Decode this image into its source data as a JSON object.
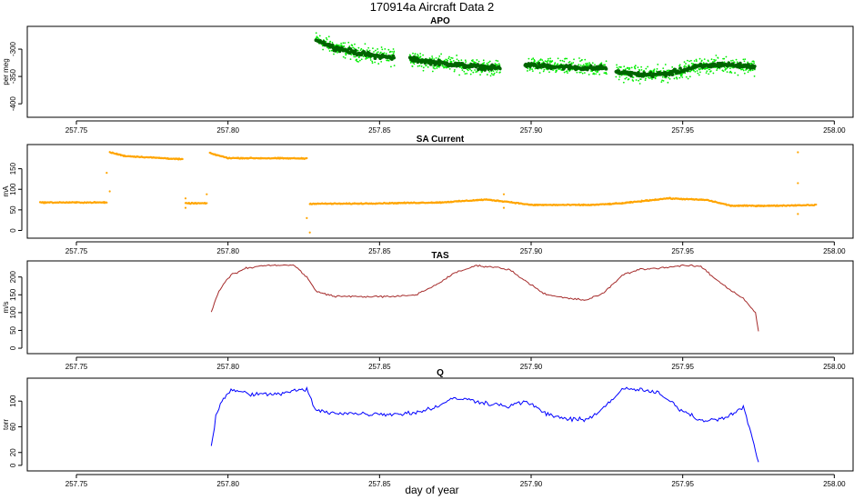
{
  "page": {
    "title": "170914a   Aircraft Data 2",
    "xlabel": "day of year"
  },
  "chart_data": [
    {
      "type": "scatter",
      "title": "APO",
      "ylabel": "per meg",
      "xlim": [
        257.735,
        258.005
      ],
      "ylim": [
        -418,
        -265
      ],
      "xticks": [
        257.75,
        257.8,
        257.85,
        257.9,
        257.95,
        258.0
      ],
      "xtick_labels": [
        "257.75",
        "257.80",
        "257.85",
        "257.90",
        "257.95",
        "258.00"
      ],
      "yticks": [
        -300,
        -350,
        -400
      ],
      "ytick_labels": [
        "-300",
        "-350",
        "-400"
      ],
      "colors": {
        "raw": "#00ee00",
        "smoothed": "#006400"
      },
      "segments": [
        {
          "x": [
            257.829,
            257.835,
            257.842,
            257.848,
            257.855
          ],
          "y": [
            -282,
            -297,
            -306,
            -312,
            -316
          ]
        },
        {
          "x": [
            257.86,
            257.868,
            257.876,
            257.884,
            257.89
          ],
          "y": [
            -318,
            -324,
            -329,
            -333,
            -335
          ]
        },
        {
          "x": [
            257.898,
            257.905,
            257.912,
            257.919,
            257.925
          ],
          "y": [
            -329,
            -331,
            -333,
            -335,
            -334
          ]
        },
        {
          "x": [
            257.928,
            257.937,
            257.945,
            257.955,
            257.963,
            257.974
          ],
          "y": [
            -342,
            -347,
            -345,
            -332,
            -328,
            -332
          ]
        }
      ]
    },
    {
      "type": "scatter",
      "title": "SA Current",
      "ylabel": "mA",
      "xlim": [
        257.735,
        258.005
      ],
      "ylim": [
        -10,
        200
      ],
      "xticks": [
        257.75,
        257.8,
        257.85,
        257.9,
        257.95,
        258.0
      ],
      "xtick_labels": [
        "257.75",
        "257.80",
        "257.85",
        "257.90",
        "257.95",
        "258.00"
      ],
      "yticks": [
        0,
        50,
        100,
        150
      ],
      "ytick_labels": [
        "0",
        "50",
        "100",
        "150"
      ],
      "colors": {
        "points": "#ffa500"
      },
      "x": [
        257.738,
        257.76,
        257.761,
        257.766,
        257.785,
        257.786,
        257.789,
        257.793,
        257.794,
        257.8,
        257.826,
        257.827,
        257.84,
        257.87,
        257.885,
        257.892,
        257.9,
        257.92,
        257.93,
        257.945,
        257.958,
        257.966,
        257.98,
        257.994
      ],
      "y": [
        68,
        68,
        190,
        181,
        173,
        66,
        66,
        66,
        188,
        176,
        175,
        65,
        65,
        68,
        75,
        70,
        62,
        62,
        66,
        78,
        74,
        60,
        60,
        62
      ]
    },
    {
      "type": "line",
      "title": "TAS",
      "ylabel": "m/s",
      "xlim": [
        257.735,
        258.005
      ],
      "ylim": [
        -5,
        235
      ],
      "xticks": [
        257.75,
        257.8,
        257.85,
        257.9,
        257.95,
        258.0
      ],
      "xtick_labels": [
        "257.75",
        "257.80",
        "257.85",
        "257.90",
        "257.95",
        "258.00"
      ],
      "yticks": [
        0,
        50,
        100,
        150,
        200
      ],
      "ytick_labels": [
        "0",
        "50",
        "100",
        "150",
        "200"
      ],
      "colors": {
        "line": "#a52a2a"
      },
      "x": [
        257.7945,
        257.796,
        257.798,
        257.801,
        257.806,
        257.812,
        257.818,
        257.822,
        257.826,
        257.829,
        257.835,
        257.845,
        257.855,
        257.862,
        257.868,
        257.875,
        257.882,
        257.888,
        257.893,
        257.898,
        257.905,
        257.912,
        257.918,
        257.924,
        257.93,
        257.936,
        257.942,
        257.95,
        257.956,
        257.96,
        257.965,
        257.97,
        257.974,
        257.975
      ],
      "y": [
        100,
        140,
        175,
        205,
        225,
        232,
        234,
        232,
        200,
        160,
        146,
        145,
        145,
        150,
        175,
        212,
        232,
        228,
        220,
        190,
        150,
        140,
        135,
        155,
        205,
        222,
        225,
        232,
        230,
        200,
        168,
        140,
        100,
        48
      ]
    },
    {
      "type": "line",
      "title": "Q",
      "ylabel": "torr",
      "xlim": [
        257.735,
        258.005
      ],
      "ylim": [
        -3,
        130
      ],
      "xticks": [
        257.75,
        257.8,
        257.85,
        257.9,
        257.95,
        258.0
      ],
      "xtick_labels": [
        "257.75",
        "257.80",
        "257.85",
        "257.90",
        "257.95",
        "258.00"
      ],
      "yticks": [
        0,
        20,
        60,
        100
      ],
      "ytick_labels": [
        "0",
        "20",
        "60",
        "100"
      ],
      "colors": {
        "line": "#0000ff"
      },
      "x": [
        257.7945,
        257.796,
        257.798,
        257.801,
        257.806,
        257.812,
        257.818,
        257.822,
        257.826,
        257.829,
        257.835,
        257.845,
        257.855,
        257.862,
        257.868,
        257.875,
        257.882,
        257.888,
        257.893,
        257.898,
        257.905,
        257.912,
        257.918,
        257.924,
        257.93,
        257.936,
        257.942,
        257.95,
        257.956,
        257.962,
        257.966,
        257.97,
        257.974,
        257.975
      ],
      "y": [
        28,
        75,
        100,
        118,
        112,
        110,
        112,
        116,
        118,
        85,
        82,
        80,
        80,
        82,
        90,
        105,
        100,
        95,
        92,
        100,
        80,
        72,
        70,
        90,
        118,
        118,
        112,
        85,
        70,
        72,
        80,
        90,
        25,
        5
      ]
    }
  ]
}
